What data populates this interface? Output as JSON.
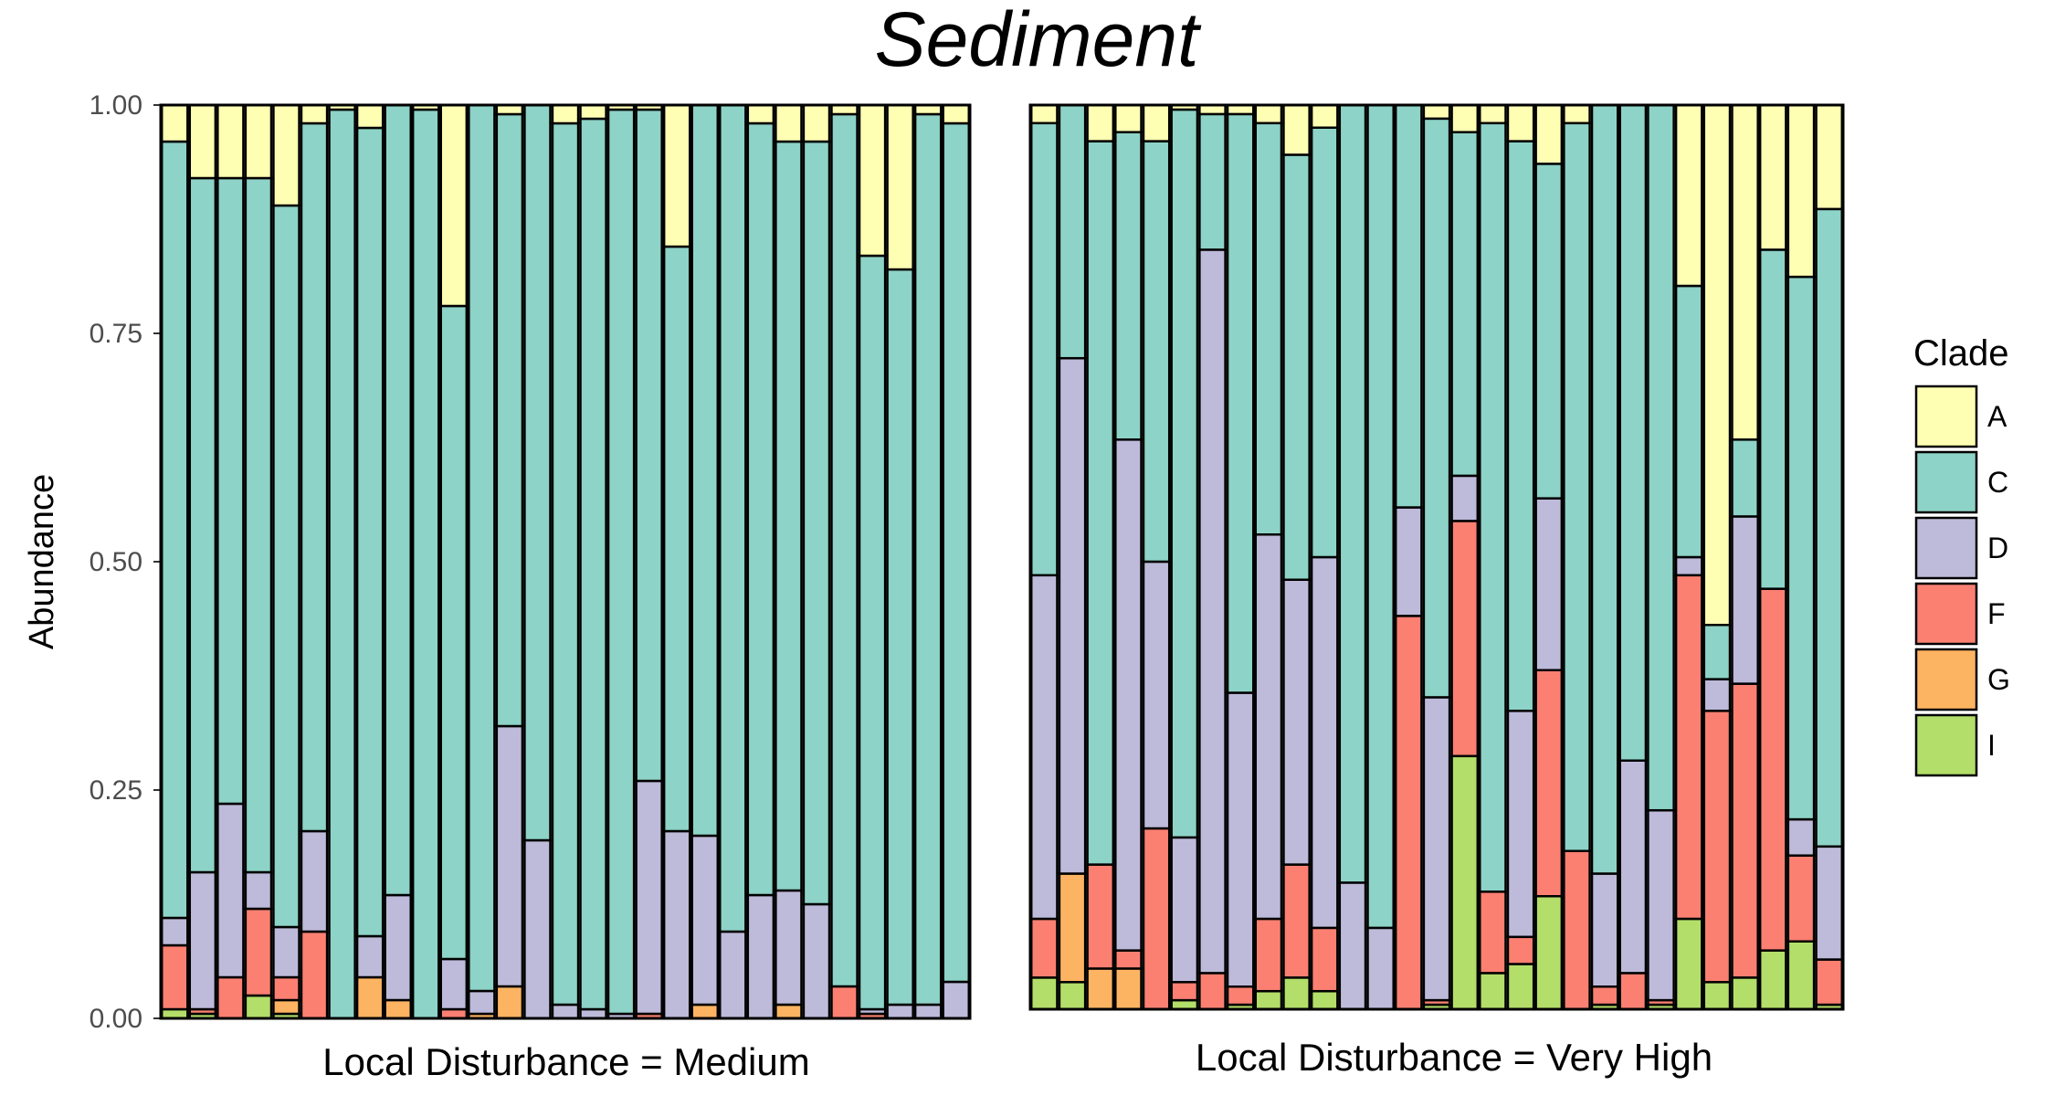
{
  "chart_data": {
    "type": "bar",
    "stacked": true,
    "title": "Sediment",
    "ylabel": "Abundance",
    "xlabel": "",
    "ylim": [
      0,
      1
    ],
    "yticks": [
      "0.00",
      "0.25",
      "0.50",
      "0.75",
      "1.00"
    ],
    "legend": {
      "title": "Clade",
      "position": "right",
      "entries": [
        {
          "name": "A",
          "color": "#ffffb3"
        },
        {
          "name": "C",
          "color": "#8dd3c7"
        },
        {
          "name": "D",
          "color": "#bebada"
        },
        {
          "name": "F",
          "color": "#fb8072"
        },
        {
          "name": "G",
          "color": "#fdb462"
        },
        {
          "name": "I",
          "color": "#b3de69"
        }
      ]
    },
    "panels": [
      {
        "label": "Local Disturbance = Medium",
        "bars": [
          {
            "I": 0.01,
            "F": 0.07,
            "D": 0.03,
            "C": 0.85,
            "A": 0.04
          },
          {
            "I": 0.005,
            "F": 0.005,
            "D": 0.15,
            "C": 0.76,
            "A": 0.08
          },
          {
            "F": 0.045,
            "D": 0.19,
            "C": 0.685,
            "A": 0.08
          },
          {
            "I": 0.025,
            "F": 0.095,
            "D": 0.04,
            "C": 0.76,
            "A": 0.08
          },
          {
            "I": 0.005,
            "G": 0.015,
            "F": 0.025,
            "D": 0.055,
            "C": 0.79,
            "A": 0.11
          },
          {
            "F": 0.095,
            "D": 0.11,
            "C": 0.775,
            "A": 0.02
          },
          {
            "C": 0.995,
            "A": 0.005
          },
          {
            "G": 0.045,
            "D": 0.045,
            "C": 0.885,
            "A": 0.025
          },
          {
            "G": 0.02,
            "D": 0.115,
            "C": 0.865,
            "A": 0.0
          },
          {
            "C": 0.995,
            "A": 0.005
          },
          {
            "F": 0.01,
            "D": 0.055,
            "C": 0.715,
            "A": 0.22
          },
          {
            "G": 0.005,
            "D": 0.025,
            "C": 0.97,
            "A": 0.0
          },
          {
            "G": 0.035,
            "D": 0.285,
            "C": 0.67,
            "A": 0.01
          },
          {
            "D": 0.195,
            "C": 0.805,
            "A": 0.0
          },
          {
            "D": 0.015,
            "C": 0.965,
            "A": 0.02
          },
          {
            "D": 0.01,
            "C": 0.975,
            "A": 0.015
          },
          {
            "D": 0.005,
            "C": 0.99,
            "A": 0.005
          },
          {
            "F": 0.005,
            "D": 0.255,
            "C": 0.735,
            "A": 0.005
          },
          {
            "D": 0.205,
            "C": 0.64,
            "A": 0.155
          },
          {
            "G": 0.015,
            "D": 0.185,
            "C": 0.8,
            "A": 0.0
          },
          {
            "D": 0.095,
            "C": 0.905,
            "A": 0.0
          },
          {
            "D": 0.135,
            "C": 0.845,
            "A": 0.02
          },
          {
            "G": 0.015,
            "D": 0.125,
            "C": 0.82,
            "A": 0.04
          },
          {
            "D": 0.125,
            "C": 0.835,
            "A": 0.04
          },
          {
            "F": 0.035,
            "C": 0.955,
            "A": 0.01
          },
          {
            "F": 0.005,
            "D": 0.005,
            "C": 0.825,
            "A": 0.165
          },
          {
            "D": 0.015,
            "C": 0.805,
            "A": 0.18
          },
          {
            "D": 0.015,
            "C": 0.975,
            "A": 0.01
          },
          {
            "D": 0.04,
            "C": 0.94,
            "A": 0.02
          }
        ]
      },
      {
        "label": "Local Disturbance = Very High",
        "bars": [
          {
            "I": 0.035,
            "F": 0.065,
            "D": 0.38,
            "C": 0.5,
            "A": 0.02
          },
          {
            "I": 0.03,
            "G": 0.12,
            "D": 0.57,
            "C": 0.28,
            "A": 0.0
          },
          {
            "G": 0.045,
            "F": 0.115,
            "D": 0.0,
            "C": 0.8,
            "A": 0.04
          },
          {
            "G": 0.045,
            "F": 0.02,
            "D": 0.565,
            "C": 0.34,
            "A": 0.03
          },
          {
            "F": 0.2,
            "D": 0.295,
            "C": 0.465,
            "A": 0.04
          },
          {
            "I": 0.01,
            "F": 0.02,
            "D": 0.16,
            "C": 0.805,
            "A": 0.005
          },
          {
            "F": 0.04,
            "D": 0.8,
            "C": 0.15,
            "A": 0.01
          },
          {
            "I": 0.005,
            "F": 0.02,
            "D": 0.325,
            "C": 0.64,
            "A": 0.01
          },
          {
            "I": 0.02,
            "F": 0.08,
            "D": 0.425,
            "C": 0.455,
            "A": 0.02
          },
          {
            "I": 0.035,
            "F": 0.125,
            "D": 0.315,
            "C": 0.47,
            "A": 0.055
          },
          {
            "I": 0.02,
            "F": 0.07,
            "D": 0.41,
            "C": 0.475,
            "A": 0.025
          },
          {
            "D": 0.14,
            "C": 0.86,
            "A": 0.0
          },
          {
            "D": 0.09,
            "C": 0.91,
            "A": 0.0
          },
          {
            "F": 0.435,
            "D": 0.12,
            "C": 0.445,
            "A": 0.0
          },
          {
            "I": 0.005,
            "F": 0.005,
            "D": 0.335,
            "C": 0.64,
            "A": 0.015
          },
          {
            "I": 0.28,
            "F": 0.26,
            "D": 0.05,
            "C": 0.38,
            "A": 0.03
          },
          {
            "I": 0.04,
            "F": 0.09,
            "D": 0.0,
            "C": 0.85,
            "A": 0.02
          },
          {
            "I": 0.05,
            "F": 0.03,
            "D": 0.25,
            "C": 0.63,
            "A": 0.04
          },
          {
            "I": 0.125,
            "F": 0.25,
            "D": 0.19,
            "C": 0.37,
            "A": 0.065
          },
          {
            "F": 0.175,
            "D": 0.0,
            "C": 0.805,
            "A": 0.02
          },
          {
            "I": 0.005,
            "F": 0.02,
            "D": 0.125,
            "C": 0.85,
            "A": 0.0
          },
          {
            "F": 0.04,
            "D": 0.235,
            "C": 0.725,
            "A": 0.0
          },
          {
            "I": 0.005,
            "F": 0.005,
            "D": 0.21,
            "C": 0.78,
            "A": 0.0
          },
          {
            "I": 0.1,
            "F": 0.38,
            "D": 0.02,
            "C": 0.3,
            "A": 0.2
          },
          {
            "I": 0.03,
            "F": 0.3,
            "D": 0.035,
            "C": 0.06,
            "A": 0.575
          },
          {
            "I": 0.035,
            "F": 0.325,
            "D": 0.185,
            "C": 0.085,
            "A": 0.37
          },
          {
            "I": 0.065,
            "F": 0.4,
            "D": 0.0,
            "C": 0.375,
            "A": 0.16
          },
          {
            "I": 0.075,
            "F": 0.095,
            "D": 0.04,
            "C": 0.6,
            "A": 0.19
          },
          {
            "I": 0.005,
            "F": 0.05,
            "D": 0.125,
            "C": 0.705,
            "A": 0.115
          }
        ]
      }
    ]
  }
}
